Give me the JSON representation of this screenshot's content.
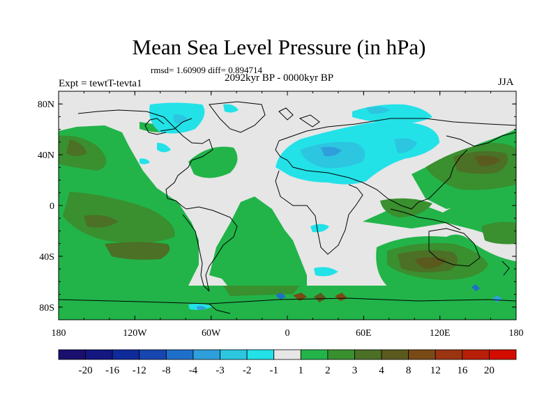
{
  "map": {
    "title": "Mean Sea Level Pressure (in hPa)",
    "stats_text": "rmsd= 1.60909 diff= 0.894714",
    "period": "2092kyr BP - 0000kyr BP",
    "experiment": "Expt = tewtT-tevta1",
    "season": "JJA",
    "lat_ticks": [
      {
        "lat": 80,
        "label": "80N"
      },
      {
        "lat": 40,
        "label": "40N"
      },
      {
        "lat": 0,
        "label": "0"
      },
      {
        "lat": -40,
        "label": "40S"
      },
      {
        "lat": -80,
        "label": "80S"
      }
    ],
    "lon_ticks": [
      {
        "lon": -180,
        "label": "180"
      },
      {
        "lon": -120,
        "label": "120W"
      },
      {
        "lon": -60,
        "label": "60W"
      },
      {
        "lon": 0,
        "label": "0"
      },
      {
        "lon": 60,
        "label": "60E"
      },
      {
        "lon": 120,
        "label": "120E"
      },
      {
        "lon": 180,
        "label": "180"
      }
    ]
  },
  "colorbar": {
    "colors": [
      "#1a0f6e",
      "#13177f",
      "#0f2a9a",
      "#1746b0",
      "#1e6fc9",
      "#2f9fdc",
      "#2cc6e0",
      "#22e2e8",
      "#e6e6e6",
      "#22b449",
      "#3a8f2f",
      "#4b7026",
      "#5a5a1f",
      "#7a4a16",
      "#9b3410",
      "#b81f08",
      "#d40c00"
    ],
    "labels": [
      "-20",
      "-16",
      "-12",
      "-8",
      "-4",
      "-3",
      "-2",
      "-1",
      "1",
      "2",
      "3",
      "4",
      "8",
      "12",
      "16",
      "20"
    ]
  }
}
